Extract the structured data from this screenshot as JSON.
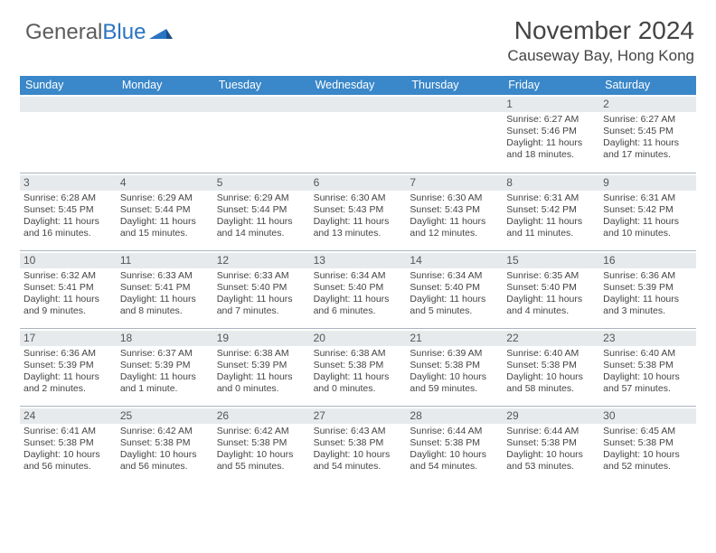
{
  "logo": {
    "text_gray": "General",
    "text_blue": "Blue"
  },
  "header": {
    "month_title": "November 2024",
    "location": "Causeway Bay, Hong Kong"
  },
  "colors": {
    "header_bar": "#3a87c9",
    "daynum_bg": "#e7eaed",
    "row_divider": "#aab4c0",
    "text": "#444444",
    "logo_gray": "#5c5c5c",
    "logo_blue": "#2a74c2",
    "background": "#ffffff"
  },
  "days_of_week": [
    "Sunday",
    "Monday",
    "Tuesday",
    "Wednesday",
    "Thursday",
    "Friday",
    "Saturday"
  ],
  "font": {
    "family": "Arial",
    "day_header_pt": 12.5,
    "cell_pt": 10.5,
    "title_pt": 28,
    "location_pt": 17
  },
  "calendar": {
    "type": "table",
    "columns": 7,
    "rows": 5,
    "leading_blanks": 5,
    "days": [
      {
        "n": 1,
        "sunrise": "6:27 AM",
        "sunset": "5:46 PM",
        "daylight": "11 hours and 18 minutes."
      },
      {
        "n": 2,
        "sunrise": "6:27 AM",
        "sunset": "5:45 PM",
        "daylight": "11 hours and 17 minutes."
      },
      {
        "n": 3,
        "sunrise": "6:28 AM",
        "sunset": "5:45 PM",
        "daylight": "11 hours and 16 minutes."
      },
      {
        "n": 4,
        "sunrise": "6:29 AM",
        "sunset": "5:44 PM",
        "daylight": "11 hours and 15 minutes."
      },
      {
        "n": 5,
        "sunrise": "6:29 AM",
        "sunset": "5:44 PM",
        "daylight": "11 hours and 14 minutes."
      },
      {
        "n": 6,
        "sunrise": "6:30 AM",
        "sunset": "5:43 PM",
        "daylight": "11 hours and 13 minutes."
      },
      {
        "n": 7,
        "sunrise": "6:30 AM",
        "sunset": "5:43 PM",
        "daylight": "11 hours and 12 minutes."
      },
      {
        "n": 8,
        "sunrise": "6:31 AM",
        "sunset": "5:42 PM",
        "daylight": "11 hours and 11 minutes."
      },
      {
        "n": 9,
        "sunrise": "6:31 AM",
        "sunset": "5:42 PM",
        "daylight": "11 hours and 10 minutes."
      },
      {
        "n": 10,
        "sunrise": "6:32 AM",
        "sunset": "5:41 PM",
        "daylight": "11 hours and 9 minutes."
      },
      {
        "n": 11,
        "sunrise": "6:33 AM",
        "sunset": "5:41 PM",
        "daylight": "11 hours and 8 minutes."
      },
      {
        "n": 12,
        "sunrise": "6:33 AM",
        "sunset": "5:40 PM",
        "daylight": "11 hours and 7 minutes."
      },
      {
        "n": 13,
        "sunrise": "6:34 AM",
        "sunset": "5:40 PM",
        "daylight": "11 hours and 6 minutes."
      },
      {
        "n": 14,
        "sunrise": "6:34 AM",
        "sunset": "5:40 PM",
        "daylight": "11 hours and 5 minutes."
      },
      {
        "n": 15,
        "sunrise": "6:35 AM",
        "sunset": "5:40 PM",
        "daylight": "11 hours and 4 minutes."
      },
      {
        "n": 16,
        "sunrise": "6:36 AM",
        "sunset": "5:39 PM",
        "daylight": "11 hours and 3 minutes."
      },
      {
        "n": 17,
        "sunrise": "6:36 AM",
        "sunset": "5:39 PM",
        "daylight": "11 hours and 2 minutes."
      },
      {
        "n": 18,
        "sunrise": "6:37 AM",
        "sunset": "5:39 PM",
        "daylight": "11 hours and 1 minute."
      },
      {
        "n": 19,
        "sunrise": "6:38 AM",
        "sunset": "5:39 PM",
        "daylight": "11 hours and 0 minutes."
      },
      {
        "n": 20,
        "sunrise": "6:38 AM",
        "sunset": "5:38 PM",
        "daylight": "11 hours and 0 minutes."
      },
      {
        "n": 21,
        "sunrise": "6:39 AM",
        "sunset": "5:38 PM",
        "daylight": "10 hours and 59 minutes."
      },
      {
        "n": 22,
        "sunrise": "6:40 AM",
        "sunset": "5:38 PM",
        "daylight": "10 hours and 58 minutes."
      },
      {
        "n": 23,
        "sunrise": "6:40 AM",
        "sunset": "5:38 PM",
        "daylight": "10 hours and 57 minutes."
      },
      {
        "n": 24,
        "sunrise": "6:41 AM",
        "sunset": "5:38 PM",
        "daylight": "10 hours and 56 minutes."
      },
      {
        "n": 25,
        "sunrise": "6:42 AM",
        "sunset": "5:38 PM",
        "daylight": "10 hours and 56 minutes."
      },
      {
        "n": 26,
        "sunrise": "6:42 AM",
        "sunset": "5:38 PM",
        "daylight": "10 hours and 55 minutes."
      },
      {
        "n": 27,
        "sunrise": "6:43 AM",
        "sunset": "5:38 PM",
        "daylight": "10 hours and 54 minutes."
      },
      {
        "n": 28,
        "sunrise": "6:44 AM",
        "sunset": "5:38 PM",
        "daylight": "10 hours and 54 minutes."
      },
      {
        "n": 29,
        "sunrise": "6:44 AM",
        "sunset": "5:38 PM",
        "daylight": "10 hours and 53 minutes."
      },
      {
        "n": 30,
        "sunrise": "6:45 AM",
        "sunset": "5:38 PM",
        "daylight": "10 hours and 52 minutes."
      }
    ]
  },
  "labels": {
    "sunrise": "Sunrise: ",
    "sunset": "Sunset: ",
    "daylight": "Daylight: "
  }
}
